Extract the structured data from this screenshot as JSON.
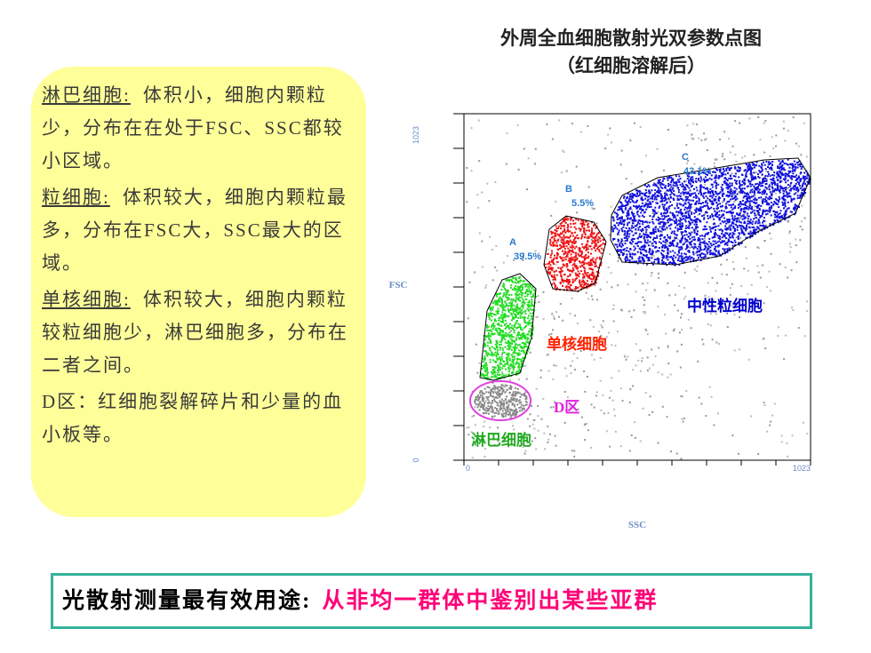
{
  "left_panel": {
    "paragraphs": [
      {
        "term": "淋巴细胞:",
        "text": "体积小，细胞内颗粒少，分布在在处于FSC、SSC都较小区域。"
      },
      {
        "term": "粒细胞:",
        "text": "体积较大，细胞内颗粒最多，分布在FSC大，SSC最大的区域。"
      },
      {
        "term": "单核细胞:",
        "text": "体积较大，细胞内颗粒较粒细胞少，淋巴细胞多，分布在二者之间。"
      },
      {
        "text": "D区：红细胞裂解碎片和少量的血小板等。"
      }
    ]
  },
  "plot": {
    "title": [
      "外周全血细胞散射光双参数点图",
      "（红细胞溶解后）"
    ],
    "x_label": "SSC",
    "y_label": "FSC",
    "x_ticks": [
      "0",
      "1023"
    ],
    "y_ticks": [
      "0",
      "1023"
    ],
    "gates": [
      {
        "label": "A",
        "percent": "39.5%"
      },
      {
        "label": "B",
        "percent": "5.5%"
      },
      {
        "label": "C",
        "percent": "43.1%"
      }
    ],
    "annotations": [
      "中性粒细胞",
      "单核细胞",
      "D区",
      "淋巴细胞"
    ]
  },
  "banner": {
    "lead": "光散射测量最有效用途:",
    "highlight": "从非均一群体中鉴别出某些亚群"
  }
}
